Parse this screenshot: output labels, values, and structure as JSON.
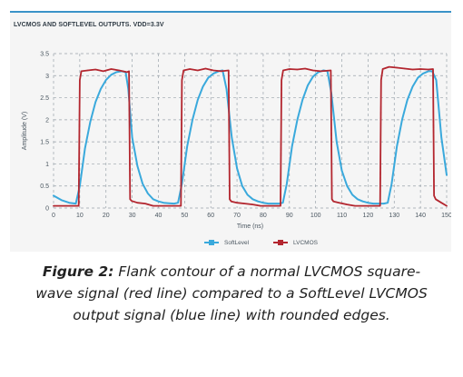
{
  "figure": {
    "title": "LVCMOS AND SOFTLEVEL OUTPUTS. VDD=3.3V"
  },
  "caption": {
    "label": "Figure 2:",
    "text": "Flank contour of a normal LVCMOS square-wave signal (red line) compared to a SoftLevel LVCMOS output signal (blue line) with rounded edges."
  },
  "colors": {
    "softlevel": "#3aa9dc",
    "lvcmos": "#b3262f",
    "grid": "#9aa3ab",
    "panel": "#f5f5f5",
    "accent": "#3a93c8",
    "axis_text": "#4a5660"
  },
  "chart_data": {
    "type": "line",
    "xlabel": "Time (ns)",
    "ylabel": "Amplitude (V)",
    "xlim": [
      0,
      150
    ],
    "ylim": [
      0,
      3.5
    ],
    "xticks": [
      0,
      10,
      20,
      30,
      40,
      50,
      60,
      70,
      80,
      90,
      100,
      110,
      120,
      130,
      140,
      150
    ],
    "yticks": [
      0,
      0.5,
      1,
      1.5,
      2,
      2.5,
      3,
      3.5
    ],
    "grid": true,
    "legend_position": "bottom-center",
    "series": [
      {
        "name": "SoftLevel",
        "marker": "square",
        "x": [
          0,
          3,
          6,
          8.5,
          10,
          12,
          14,
          16,
          18,
          20,
          22,
          24,
          26,
          27.5,
          28.5,
          30,
          32,
          34,
          36,
          38,
          40,
          42,
          44,
          46,
          47.5,
          49,
          51,
          53,
          55,
          57,
          59,
          61,
          63,
          64.5,
          66,
          68,
          70,
          72,
          74,
          76,
          78,
          80,
          82,
          84,
          86,
          87.5,
          89,
          91,
          93,
          95,
          97,
          99,
          101,
          103,
          104.5,
          106,
          108,
          110,
          112,
          114,
          116,
          118,
          120,
          122,
          124,
          126,
          127.5,
          129,
          131,
          133,
          135,
          137,
          139,
          141,
          143,
          144.5,
          146,
          148,
          150
        ],
        "y": [
          0.28,
          0.18,
          0.12,
          0.1,
          0.5,
          1.35,
          1.95,
          2.4,
          2.7,
          2.9,
          3.02,
          3.08,
          3.1,
          3.08,
          2.7,
          1.6,
          0.95,
          0.55,
          0.33,
          0.2,
          0.15,
          0.12,
          0.11,
          0.1,
          0.12,
          0.55,
          1.4,
          2.0,
          2.45,
          2.75,
          2.95,
          3.05,
          3.1,
          3.12,
          2.7,
          1.6,
          0.9,
          0.5,
          0.3,
          0.2,
          0.15,
          0.12,
          0.1,
          0.1,
          0.1,
          0.12,
          0.55,
          1.4,
          2.0,
          2.45,
          2.78,
          2.98,
          3.08,
          3.12,
          3.1,
          2.6,
          1.5,
          0.85,
          0.5,
          0.3,
          0.2,
          0.15,
          0.12,
          0.1,
          0.1,
          0.1,
          0.12,
          0.55,
          1.4,
          2.0,
          2.45,
          2.75,
          2.95,
          3.05,
          3.1,
          3.1,
          2.9,
          1.6,
          0.75
        ]
      },
      {
        "name": "LVCMOS",
        "marker": "square",
        "x": [
          0,
          5,
          9.6,
          10,
          10.6,
          13,
          16,
          19,
          22,
          25,
          28,
          28.8,
          29.2,
          29.8,
          32,
          35,
          38,
          41,
          44,
          47,
          48.6,
          49,
          49.6,
          52,
          55,
          58,
          61,
          64,
          66.8,
          67.2,
          67.8,
          70,
          73,
          76,
          79,
          82,
          85,
          86.6,
          87,
          87.6,
          90,
          93,
          96,
          99,
          102,
          105.8,
          106.2,
          106.8,
          109,
          112,
          115,
          118,
          121,
          124.6,
          125,
          125.6,
          128,
          131,
          134,
          137,
          140,
          143,
          144.8,
          145.2,
          145.8,
          148,
          150
        ],
        "y": [
          0.05,
          0.05,
          0.05,
          2.9,
          3.1,
          3.12,
          3.14,
          3.1,
          3.15,
          3.12,
          3.08,
          3.1,
          0.2,
          0.16,
          0.12,
          0.1,
          0.05,
          0.05,
          0.05,
          0.05,
          0.05,
          2.9,
          3.12,
          3.15,
          3.12,
          3.16,
          3.12,
          3.1,
          3.12,
          0.2,
          0.15,
          0.12,
          0.1,
          0.08,
          0.05,
          0.05,
          0.05,
          0.05,
          2.9,
          3.12,
          3.15,
          3.14,
          3.16,
          3.12,
          3.1,
          3.12,
          0.2,
          0.15,
          0.12,
          0.08,
          0.05,
          0.05,
          0.05,
          0.05,
          2.9,
          3.15,
          3.2,
          3.18,
          3.16,
          3.14,
          3.15,
          3.14,
          3.15,
          0.28,
          0.2,
          0.12,
          0.05
        ]
      }
    ]
  }
}
